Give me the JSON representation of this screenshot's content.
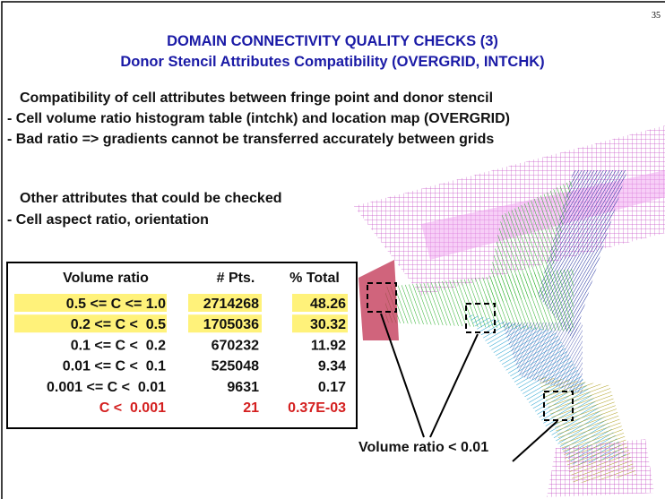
{
  "page_number": "35",
  "title": "DOMAIN CONNECTIVITY QUALITY CHECKS (3)",
  "subtitle": "Donor Stencil Attributes Compatibility (OVERGRID, INTCHK)",
  "body": [
    "Compatibility of cell attributes between fringe point and donor stencil",
    "- Cell volume ratio histogram table (intchk) and location map (OVERGRID)",
    "- Bad ratio => gradients cannot be transferred accurately between grids",
    "Other attributes that could be checked",
    "- Cell aspect ratio, orientation"
  ],
  "table": {
    "headers": [
      "Volume ratio",
      "# Pts.",
      "% Total"
    ],
    "rows": [
      [
        "0.5 <= C <= 1.0",
        "2714268",
        "48.26"
      ],
      [
        "0.2 <= C <  0.5",
        "1705036",
        "30.32"
      ],
      [
        "0.1 <= C <  0.2",
        "670232",
        "11.92"
      ],
      [
        "0.01 <= C <  0.1",
        "525048",
        "9.34"
      ],
      [
        "0.001 <= C <  0.01",
        "9631",
        "0.17"
      ],
      [
        "C <  0.001",
        "21",
        "0.37E-03"
      ]
    ]
  },
  "annotation": "Volume ratio < 0.01"
}
